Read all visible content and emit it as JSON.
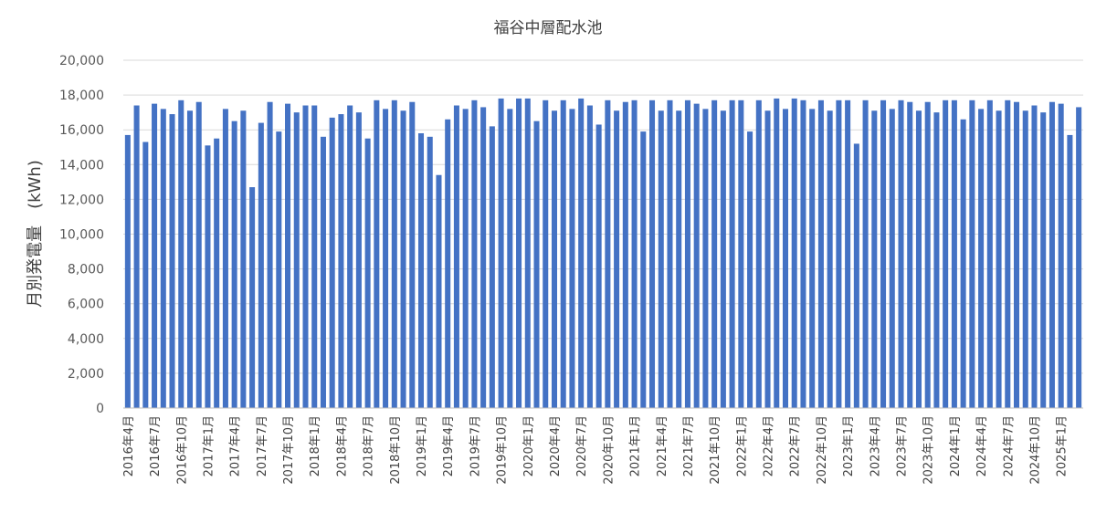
{
  "chart_data": {
    "type": "bar",
    "title": "福谷中層配水池",
    "xlabel": "",
    "ylabel": "月別発電量　(kWh)",
    "ylim": [
      0,
      20000
    ],
    "y_ticks": [
      "0",
      "2,000",
      "4,000",
      "6,000",
      "8,000",
      "10,000",
      "12,000",
      "14,000",
      "16,000",
      "18,000",
      "20,000"
    ],
    "grid": true,
    "bar_color": "#4472c4",
    "categories": [
      "2016年4月",
      "2016年5月",
      "2016年6月",
      "2016年7月",
      "2016年8月",
      "2016年9月",
      "2016年10月",
      "2016年11月",
      "2016年12月",
      "2017年1月",
      "2017年2月",
      "2017年3月",
      "2017年4月",
      "2017年5月",
      "2017年6月",
      "2017年7月",
      "2017年8月",
      "2017年9月",
      "2017年10月",
      "2017年11月",
      "2017年12月",
      "2018年1月",
      "2018年2月",
      "2018年3月",
      "2018年4月",
      "2018年5月",
      "2018年6月",
      "2018年7月",
      "2018年8月",
      "2018年9月",
      "2018年10月",
      "2018年11月",
      "2018年12月",
      "2019年1月",
      "2019年2月",
      "2019年3月",
      "2019年4月",
      "2019年5月",
      "2019年6月",
      "2019年7月",
      "2019年8月",
      "2019年9月",
      "2019年10月",
      "2019年11月",
      "2019年12月",
      "2020年1月",
      "2020年2月",
      "2020年3月",
      "2020年4月",
      "2020年5月",
      "2020年6月",
      "2020年7月",
      "2020年8月",
      "2020年9月",
      "2020年10月",
      "2020年11月",
      "2020年12月",
      "2021年1月",
      "2021年2月",
      "2021年3月",
      "2021年4月",
      "2021年5月",
      "2021年6月",
      "2021年7月",
      "2021年8月",
      "2021年9月",
      "2021年10月",
      "2021年11月",
      "2021年12月",
      "2022年1月",
      "2022年2月",
      "2022年3月",
      "2022年4月",
      "2022年5月",
      "2022年6月",
      "2022年7月",
      "2022年8月",
      "2022年9月",
      "2022年10月",
      "2022年11月",
      "2022年12月",
      "2023年1月",
      "2023年2月",
      "2023年3月",
      "2023年4月",
      "2023年5月",
      "2023年6月",
      "2023年7月",
      "2023年8月",
      "2023年9月",
      "2023年10月",
      "2023年11月",
      "2023年12月",
      "2024年1月",
      "2024年2月",
      "2024年3月",
      "2024年4月",
      "2024年5月",
      "2024年6月",
      "2024年7月",
      "2024年8月",
      "2024年9月",
      "2024年10月",
      "2024年11月",
      "2024年12月",
      "2025年1月",
      "2025年2月",
      "2025年3月"
    ],
    "tick_labels": [
      "2016年4月",
      "2016年7月",
      "2016年10月",
      "2017年1月",
      "2017年4月",
      "2017年7月",
      "2017年10月",
      "2018年1月",
      "2018年4月",
      "2018年7月",
      "2018年10月",
      "2019年1月",
      "2019年4月",
      "2019年7月",
      "2019年10月",
      "2020年1月",
      "2020年4月",
      "2020年7月",
      "2020年10月",
      "2021年1月",
      "2021年4月",
      "2021年7月",
      "2021年10月",
      "2022年1月",
      "2022年4月",
      "2022年7月",
      "2022年10月",
      "2023年1月",
      "2023年4月",
      "2023年7月",
      "2023年10月",
      "2024年1月",
      "2024年4月",
      "2024年7月",
      "2024年10月",
      "2025年1月"
    ],
    "values": [
      15700,
      17400,
      15300,
      17500,
      17200,
      16900,
      17700,
      17100,
      17600,
      15100,
      15500,
      17200,
      16500,
      17100,
      12700,
      16400,
      17600,
      15900,
      17500,
      17000,
      17400,
      17400,
      15600,
      16700,
      16900,
      17400,
      17000,
      15500,
      17700,
      17200,
      17700,
      17100,
      17600,
      15800,
      15600,
      13400,
      16600,
      17400,
      17200,
      17700,
      17300,
      16200,
      17800,
      17200,
      17800,
      17800,
      16500,
      17700,
      17100,
      17700,
      17200,
      17800,
      17400,
      16300,
      17700,
      17100,
      17600,
      17700,
      15900,
      17700,
      17100,
      17700,
      17100,
      17700,
      17500,
      17200,
      17700,
      17100,
      17700,
      17700,
      15900,
      17700,
      17100,
      17800,
      17200,
      17800,
      17700,
      17200,
      17700,
      17100,
      17700,
      17700,
      15200,
      17700,
      17100,
      17700,
      17200,
      17700,
      17600,
      17100,
      17600,
      17000,
      17700,
      17700,
      16600,
      17700,
      17200,
      17700,
      17100,
      17700,
      17600,
      17100,
      17400,
      17000,
      17600,
      17500,
      15700,
      17300
    ]
  }
}
